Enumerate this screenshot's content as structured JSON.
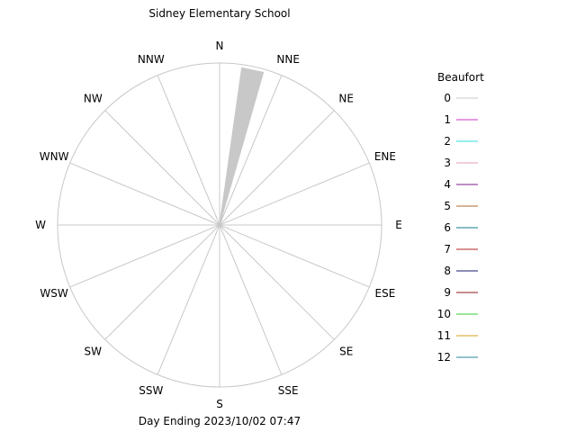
{
  "chart_data": {
    "type": "wind-rose",
    "title": "Sidney Elementary School",
    "footer": "Day Ending 2023/10/02 07:47",
    "directions": [
      "N",
      "NNE",
      "NE",
      "ENE",
      "E",
      "ESE",
      "SE",
      "SSE",
      "S",
      "SSW",
      "SW",
      "WSW",
      "W",
      "WNW",
      "NW",
      "NNW"
    ],
    "bars": [
      {
        "direction_start_deg": 8,
        "direction_end_deg": 16,
        "radius_fraction": 0.98,
        "beaufort": 0
      }
    ],
    "legend": {
      "title": "Beaufort",
      "placement": "right",
      "entries": [
        {
          "label": "0",
          "color": "#c8c8c8"
        },
        {
          "label": "1",
          "color": "#cc33cc"
        },
        {
          "label": "2",
          "color": "#33dddd"
        },
        {
          "label": "3",
          "color": "#e69ab4"
        },
        {
          "label": "4",
          "color": "#7a1f8a"
        },
        {
          "label": "5",
          "color": "#a86a2a"
        },
        {
          "label": "6",
          "color": "#117a8b"
        },
        {
          "label": "7",
          "color": "#b22222"
        },
        {
          "label": "8",
          "color": "#1a1a6e"
        },
        {
          "label": "9",
          "color": "#8b1a1a"
        },
        {
          "label": "10",
          "color": "#33cc33"
        },
        {
          "label": "11",
          "color": "#d4a017"
        },
        {
          "label": "12",
          "color": "#2a8a9a"
        }
      ]
    },
    "colors": {
      "grid": "#c8c8c8",
      "text": "#000000",
      "background": "#ffffff"
    }
  }
}
